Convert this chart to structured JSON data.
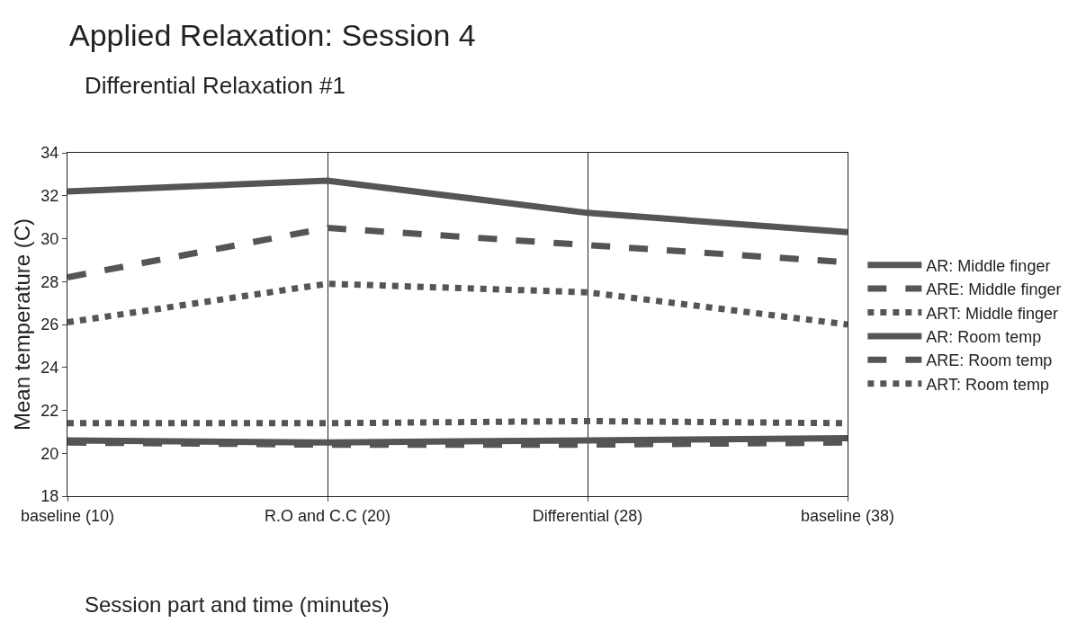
{
  "chart_data": {
    "type": "line",
    "title": "Applied Relaxation: Session 4",
    "subtitle": "Differential Relaxation #1",
    "xlabel": "Session part and time (minutes)",
    "ylabel": "Mean temperature (C)",
    "categories": [
      "baseline (10)",
      "R.O and C.C (20)",
      "Differential (28)",
      "baseline (38)"
    ],
    "series": [
      {
        "name": "AR: Middle finger",
        "color": "#555555",
        "line_style": "solid",
        "values": [
          32.2,
          32.7,
          31.2,
          30.3
        ]
      },
      {
        "name": "ARE: Middle finger",
        "color": "#555555",
        "line_style": "dashed",
        "values": [
          28.2,
          30.5,
          29.7,
          28.9
        ]
      },
      {
        "name": "ART: Middle finger",
        "color": "#555555",
        "line_style": "dotted",
        "values": [
          26.1,
          27.9,
          27.5,
          26.0
        ]
      },
      {
        "name": "AR: Room temp",
        "color": "#555555",
        "line_style": "solid",
        "values": [
          20.6,
          20.5,
          20.6,
          20.7
        ]
      },
      {
        "name": "ARE: Room temp",
        "color": "#555555",
        "line_style": "dashed",
        "values": [
          20.5,
          20.4,
          20.4,
          20.5
        ]
      },
      {
        "name": "ART: Room temp",
        "color": "#555555",
        "line_style": "dotted",
        "values": [
          21.4,
          21.4,
          21.5,
          21.4
        ]
      }
    ],
    "ylim": [
      18,
      34
    ],
    "yticks": [
      18,
      20,
      22,
      24,
      26,
      28,
      30,
      32,
      34
    ],
    "grid": "x",
    "legend": "right",
    "marker": "none"
  }
}
